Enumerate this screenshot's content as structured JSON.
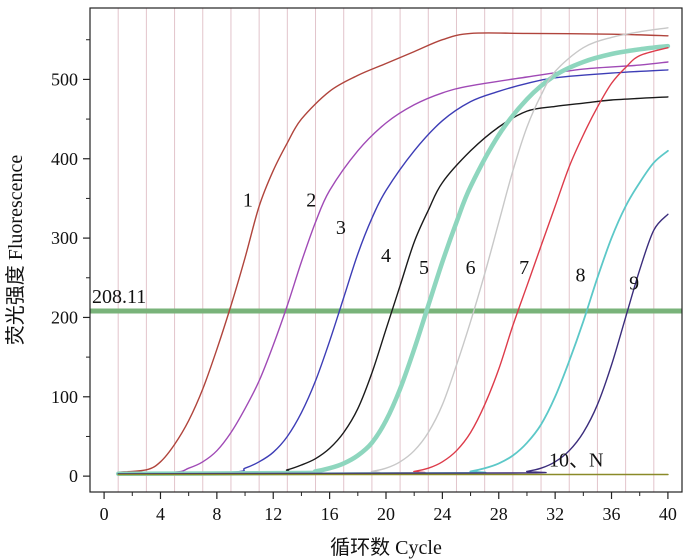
{
  "chart_data": {
    "type": "line",
    "title": "",
    "xlabel": "循环数 Cycle",
    "ylabel": "荧光强度  Fluorescence",
    "xlim": [
      -1,
      41
    ],
    "ylim": [
      -20,
      590
    ],
    "x_ticks": [
      0,
      4,
      8,
      12,
      16,
      20,
      24,
      28,
      32,
      36,
      40
    ],
    "y_ticks": [
      0,
      100,
      200,
      300,
      400,
      500
    ],
    "grid": {
      "vertical": true,
      "horizontal": false,
      "color": "#e2c4cb"
    },
    "threshold": {
      "value": 208.11,
      "label": "208.11",
      "color": "#79b37a"
    },
    "series": [
      {
        "name": "1",
        "color": "#b0443c",
        "width": 1.4,
        "points": [
          [
            1,
            5
          ],
          [
            3,
            8
          ],
          [
            4,
            18
          ],
          [
            5,
            40
          ],
          [
            6,
            70
          ],
          [
            7,
            110
          ],
          [
            8,
            160
          ],
          [
            9,
            215
          ],
          [
            10,
            275
          ],
          [
            11,
            340
          ],
          [
            12,
            385
          ],
          [
            13,
            420
          ],
          [
            14,
            450
          ],
          [
            16,
            485
          ],
          [
            18,
            505
          ],
          [
            20,
            520
          ],
          [
            22,
            535
          ],
          [
            24,
            550
          ],
          [
            26,
            558
          ],
          [
            30,
            558
          ],
          [
            36,
            557
          ],
          [
            40,
            555
          ]
        ]
      },
      {
        "name": "2",
        "color": "#a04ab6",
        "width": 1.4,
        "points": [
          [
            1,
            3
          ],
          [
            5,
            5
          ],
          [
            6,
            10
          ],
          [
            7,
            18
          ],
          [
            8,
            32
          ],
          [
            9,
            55
          ],
          [
            10,
            85
          ],
          [
            11,
            120
          ],
          [
            12,
            165
          ],
          [
            13,
            215
          ],
          [
            14,
            270
          ],
          [
            15,
            320
          ],
          [
            16,
            360
          ],
          [
            18,
            410
          ],
          [
            20,
            445
          ],
          [
            22,
            468
          ],
          [
            24,
            483
          ],
          [
            26,
            492
          ],
          [
            30,
            503
          ],
          [
            34,
            513
          ],
          [
            38,
            518
          ],
          [
            40,
            522
          ]
        ]
      },
      {
        "name": "3",
        "color": "#3d3db6",
        "width": 1.4,
        "points": [
          [
            1,
            3
          ],
          [
            9,
            5
          ],
          [
            10,
            10
          ],
          [
            11,
            18
          ],
          [
            12,
            30
          ],
          [
            13,
            50
          ],
          [
            14,
            80
          ],
          [
            15,
            120
          ],
          [
            16,
            170
          ],
          [
            17,
            225
          ],
          [
            18,
            280
          ],
          [
            19,
            325
          ],
          [
            20,
            360
          ],
          [
            22,
            410
          ],
          [
            24,
            448
          ],
          [
            26,
            472
          ],
          [
            28,
            485
          ],
          [
            30,
            495
          ],
          [
            32,
            502
          ],
          [
            36,
            508
          ],
          [
            40,
            512
          ]
        ]
      },
      {
        "name": "4",
        "color": "#1a1a1a",
        "width": 1.4,
        "points": [
          [
            1,
            3
          ],
          [
            12,
            5
          ],
          [
            13,
            8
          ],
          [
            14,
            14
          ],
          [
            15,
            22
          ],
          [
            16,
            35
          ],
          [
            17,
            55
          ],
          [
            18,
            85
          ],
          [
            19,
            130
          ],
          [
            20,
            185
          ],
          [
            21,
            240
          ],
          [
            22,
            295
          ],
          [
            23,
            335
          ],
          [
            24,
            370
          ],
          [
            26,
            410
          ],
          [
            28,
            440
          ],
          [
            30,
            460
          ],
          [
            32,
            466
          ],
          [
            34,
            470
          ],
          [
            36,
            474
          ],
          [
            40,
            478
          ]
        ]
      },
      {
        "name": "5",
        "color": "#8ed6be",
        "width": 4.5,
        "points": [
          [
            1,
            3
          ],
          [
            14,
            4
          ],
          [
            15,
            6
          ],
          [
            16,
            10
          ],
          [
            17,
            16
          ],
          [
            18,
            26
          ],
          [
            19,
            42
          ],
          [
            20,
            70
          ],
          [
            21,
            110
          ],
          [
            22,
            160
          ],
          [
            23,
            215
          ],
          [
            24,
            270
          ],
          [
            25,
            320
          ],
          [
            26,
            365
          ],
          [
            28,
            430
          ],
          [
            30,
            475
          ],
          [
            32,
            505
          ],
          [
            34,
            522
          ],
          [
            36,
            532
          ],
          [
            38,
            538
          ],
          [
            40,
            542
          ]
        ]
      },
      {
        "name": "6",
        "color": "#c8c8c8",
        "width": 1.4,
        "points": [
          [
            1,
            3
          ],
          [
            18,
            4
          ],
          [
            19,
            6
          ],
          [
            20,
            10
          ],
          [
            21,
            18
          ],
          [
            22,
            32
          ],
          [
            23,
            55
          ],
          [
            24,
            90
          ],
          [
            25,
            140
          ],
          [
            26,
            195
          ],
          [
            27,
            255
          ],
          [
            28,
            320
          ],
          [
            29,
            385
          ],
          [
            30,
            440
          ],
          [
            31,
            480
          ],
          [
            32,
            510
          ],
          [
            34,
            540
          ],
          [
            36,
            553
          ],
          [
            38,
            560
          ],
          [
            40,
            565
          ]
        ]
      },
      {
        "name": "7",
        "color": "#dd3b4a",
        "width": 1.4,
        "points": [
          [
            1,
            3
          ],
          [
            21,
            4
          ],
          [
            22,
            6
          ],
          [
            23,
            10
          ],
          [
            24,
            18
          ],
          [
            25,
            32
          ],
          [
            26,
            55
          ],
          [
            27,
            90
          ],
          [
            28,
            135
          ],
          [
            29,
            190
          ],
          [
            30,
            240
          ],
          [
            31,
            290
          ],
          [
            32,
            340
          ],
          [
            33,
            390
          ],
          [
            34,
            430
          ],
          [
            35,
            465
          ],
          [
            36,
            495
          ],
          [
            37,
            515
          ],
          [
            38,
            530
          ],
          [
            40,
            540
          ]
        ]
      },
      {
        "name": "8",
        "color": "#5cc8c8",
        "width": 1.8,
        "points": [
          [
            1,
            3
          ],
          [
            25,
            4
          ],
          [
            26,
            6
          ],
          [
            27,
            10
          ],
          [
            28,
            16
          ],
          [
            29,
            26
          ],
          [
            30,
            42
          ],
          [
            31,
            65
          ],
          [
            32,
            100
          ],
          [
            33,
            145
          ],
          [
            34,
            195
          ],
          [
            35,
            250
          ],
          [
            36,
            300
          ],
          [
            37,
            340
          ],
          [
            38,
            370
          ],
          [
            39,
            395
          ],
          [
            40,
            410
          ]
        ]
      },
      {
        "name": "9",
        "color": "#3b2d7c",
        "width": 1.4,
        "points": [
          [
            1,
            3
          ],
          [
            29,
            4
          ],
          [
            30,
            6
          ],
          [
            31,
            10
          ],
          [
            32,
            18
          ],
          [
            33,
            32
          ],
          [
            34,
            55
          ],
          [
            35,
            90
          ],
          [
            36,
            140
          ],
          [
            37,
            200
          ],
          [
            38,
            260
          ],
          [
            39,
            310
          ],
          [
            40,
            330
          ]
        ]
      },
      {
        "name": "10、N",
        "color": "#8a8a28",
        "width": 1.6,
        "points": [
          [
            1,
            2
          ],
          [
            40,
            2
          ]
        ]
      }
    ],
    "series_labels": [
      {
        "text": "1",
        "x": 10.2,
        "y": 340
      },
      {
        "text": "2",
        "x": 14.7,
        "y": 340
      },
      {
        "text": "3",
        "x": 16.8,
        "y": 305
      },
      {
        "text": "4",
        "x": 20.0,
        "y": 270
      },
      {
        "text": "5",
        "x": 22.7,
        "y": 255
      },
      {
        "text": "6",
        "x": 26.0,
        "y": 255
      },
      {
        "text": "7",
        "x": 29.8,
        "y": 255
      },
      {
        "text": "8",
        "x": 33.8,
        "y": 245
      },
      {
        "text": "9",
        "x": 37.6,
        "y": 235
      },
      {
        "text": "10、N",
        "x": 33.5,
        "y": 12
      }
    ]
  }
}
